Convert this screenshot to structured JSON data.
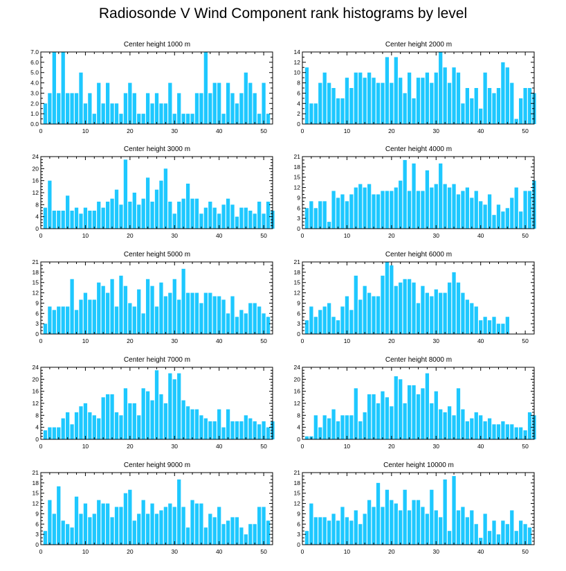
{
  "title": "Radiosonde V Wind Component rank histograms by level",
  "bar_color": "#1ec8ff",
  "chart_data": [
    {
      "type": "bar",
      "title": "Center height 1000 m",
      "xlim": [
        0,
        52
      ],
      "ylim": [
        0,
        7
      ],
      "x_ticks": [
        0,
        10,
        20,
        30,
        40,
        50
      ],
      "y_ticks": [
        0,
        1,
        2,
        3,
        4,
        5,
        6,
        7
      ],
      "y_tick_labels": [
        "0.0",
        "1.0",
        "2.0",
        "3.0",
        "4.0",
        "5.0",
        "6.0",
        "7.0"
      ],
      "values": [
        2,
        3,
        7,
        3,
        7,
        3,
        3,
        3,
        5,
        2,
        3,
        1,
        4,
        2,
        4,
        2,
        2,
        1,
        3,
        4,
        3,
        1,
        1,
        3,
        2,
        3,
        2,
        2,
        4,
        1,
        3,
        1,
        1,
        1,
        3,
        3,
        7,
        3,
        4,
        4,
        1,
        4,
        3,
        2,
        3,
        5,
        4,
        3,
        1,
        4,
        1
      ]
    },
    {
      "type": "bar",
      "title": "Center height 2000 m",
      "xlim": [
        0,
        52
      ],
      "ylim": [
        0,
        14
      ],
      "x_ticks": [
        0,
        10,
        20,
        30,
        40,
        50
      ],
      "y_ticks": [
        0,
        2,
        4,
        6,
        8,
        10,
        12,
        14
      ],
      "y_tick_labels": [
        "0",
        "2",
        "4",
        "6",
        "8",
        "10",
        "12",
        "14"
      ],
      "values": [
        11,
        4,
        4,
        8,
        10,
        8,
        7,
        5,
        5,
        9,
        7,
        10,
        10,
        9,
        10,
        9,
        8,
        8,
        13,
        8,
        13,
        9,
        6,
        10,
        5,
        9,
        9,
        10,
        8,
        10,
        14,
        11,
        8,
        11,
        10,
        4,
        7,
        5,
        7,
        3,
        10,
        7,
        6,
        7,
        12,
        11,
        8,
        1,
        5,
        7,
        7,
        6
      ]
    },
    {
      "type": "bar",
      "title": "Center height 3000 m",
      "xlim": [
        0,
        52
      ],
      "ylim": [
        0,
        24
      ],
      "x_ticks": [
        0,
        10,
        20,
        30,
        40,
        50
      ],
      "y_ticks": [
        0,
        4,
        8,
        12,
        16,
        20,
        24
      ],
      "y_tick_labels": [
        "0",
        "4",
        "8",
        "12",
        "16",
        "20",
        "24"
      ],
      "values": [
        7,
        16,
        6,
        6,
        6,
        11,
        6,
        7,
        5,
        7,
        6,
        6,
        9,
        7,
        9,
        10,
        13,
        8,
        23,
        9,
        12,
        8,
        10,
        17,
        9,
        13,
        16,
        20,
        9,
        5,
        9,
        10,
        15,
        10,
        10,
        5,
        7,
        9,
        7,
        5,
        8,
        10,
        8,
        4,
        7,
        7,
        6,
        5,
        9,
        5,
        9,
        6
      ]
    },
    {
      "type": "bar",
      "title": "Center height 4000 m",
      "xlim": [
        0,
        52
      ],
      "ylim": [
        0,
        21
      ],
      "x_ticks": [
        0,
        10,
        20,
        30,
        40,
        50
      ],
      "y_ticks": [
        0,
        3,
        6,
        9,
        12,
        15,
        18,
        21
      ],
      "y_tick_labels": [
        "0",
        "3",
        "6",
        "9",
        "12",
        "15",
        "18",
        "21"
      ],
      "values": [
        6,
        8,
        6,
        8,
        8,
        2,
        11,
        9,
        10,
        8,
        10,
        12,
        13,
        12,
        13,
        10,
        10,
        11,
        11,
        11,
        12,
        14,
        20,
        11,
        19,
        11,
        11,
        17,
        12,
        13,
        19,
        13,
        12,
        13,
        10,
        11,
        12,
        9,
        11,
        8,
        7,
        10,
        4,
        7,
        5,
        6,
        9,
        12,
        5,
        11,
        11,
        14
      ]
    },
    {
      "type": "bar",
      "title": "Center height 5000 m",
      "xlim": [
        0,
        52
      ],
      "ylim": [
        0,
        21
      ],
      "x_ticks": [
        0,
        10,
        20,
        30,
        40,
        50
      ],
      "y_ticks": [
        0,
        3,
        6,
        9,
        12,
        15,
        18,
        21
      ],
      "y_tick_labels": [
        "0",
        "3",
        "6",
        "9",
        "12",
        "15",
        "18",
        "21"
      ],
      "values": [
        3,
        8,
        7,
        8,
        8,
        8,
        16,
        7,
        10,
        12,
        10,
        10,
        15,
        14,
        12,
        16,
        8,
        17,
        14,
        9,
        8,
        13,
        6,
        16,
        14,
        8,
        15,
        11,
        12,
        16,
        10,
        19,
        12,
        12,
        12,
        9,
        12,
        12,
        11,
        11,
        10,
        6,
        11,
        5,
        7,
        6,
        9,
        9,
        8,
        6,
        5
      ]
    },
    {
      "type": "bar",
      "title": "Center height 6000 m",
      "xlim": [
        0,
        52
      ],
      "ylim": [
        0,
        21
      ],
      "x_ticks": [
        0,
        10,
        20,
        30,
        40,
        50
      ],
      "y_ticks": [
        0,
        3,
        6,
        9,
        12,
        15,
        18,
        21
      ],
      "y_tick_labels": [
        "0",
        "3",
        "6",
        "9",
        "12",
        "15",
        "18",
        "21"
      ],
      "values": [
        4,
        8,
        5,
        7,
        8,
        9,
        5,
        4,
        8,
        11,
        7,
        17,
        10,
        14,
        12,
        11,
        11,
        17,
        21,
        20,
        14,
        15,
        16,
        16,
        15,
        9,
        14,
        12,
        11,
        13,
        12,
        12,
        15,
        18,
        15,
        12,
        10,
        9,
        8,
        4,
        5,
        4,
        5,
        3,
        3,
        5
      ]
    },
    {
      "type": "bar",
      "title": "Center height 7000 m",
      "xlim": [
        0,
        52
      ],
      "ylim": [
        0,
        24
      ],
      "x_ticks": [
        0,
        10,
        20,
        30,
        40,
        50
      ],
      "y_ticks": [
        0,
        4,
        8,
        12,
        16,
        20,
        24
      ],
      "y_tick_labels": [
        "0",
        "4",
        "8",
        "12",
        "16",
        "20",
        "24"
      ],
      "values": [
        3,
        4,
        4,
        4,
        7,
        9,
        5,
        9,
        11,
        12,
        9,
        8,
        7,
        14,
        15,
        15,
        9,
        8,
        17,
        12,
        12,
        8,
        17,
        16,
        13,
        23,
        15,
        12,
        22,
        20,
        22,
        13,
        11,
        10,
        10,
        8,
        7,
        6,
        6,
        10,
        4,
        10,
        6,
        6,
        6,
        8,
        7,
        6,
        5,
        6,
        4,
        6
      ]
    },
    {
      "type": "bar",
      "title": "Center height 8000 m",
      "xlim": [
        0,
        52
      ],
      "ylim": [
        0,
        24
      ],
      "x_ticks": [
        0,
        10,
        20,
        30,
        40,
        50
      ],
      "y_ticks": [
        0,
        4,
        8,
        12,
        16,
        20,
        24
      ],
      "y_tick_labels": [
        "0",
        "4",
        "8",
        "12",
        "16",
        "20",
        "24"
      ],
      "values": [
        1,
        1,
        8,
        4,
        8,
        7,
        10,
        6,
        8,
        8,
        8,
        17,
        6,
        9,
        15,
        15,
        12,
        16,
        14,
        11,
        21,
        20,
        12,
        18,
        18,
        15,
        17,
        22,
        12,
        16,
        10,
        9,
        11,
        8,
        17,
        10,
        6,
        7,
        9,
        8,
        6,
        7,
        5,
        5,
        6,
        5,
        5,
        4,
        4,
        3,
        9,
        8
      ]
    },
    {
      "type": "bar",
      "title": "Center height 9000 m",
      "xlim": [
        0,
        52
      ],
      "ylim": [
        0,
        21
      ],
      "x_ticks": [
        0,
        10,
        20,
        30,
        40,
        50
      ],
      "y_ticks": [
        0,
        3,
        6,
        9,
        12,
        15,
        18,
        21
      ],
      "y_tick_labels": [
        "0",
        "3",
        "6",
        "9",
        "12",
        "15",
        "18",
        "21"
      ],
      "values": [
        4,
        13,
        9,
        17,
        7,
        6,
        5,
        14,
        9,
        12,
        8,
        9,
        13,
        12,
        12,
        8,
        11,
        11,
        15,
        16,
        7,
        9,
        13,
        9,
        12,
        9,
        10,
        11,
        12,
        11,
        19,
        11,
        5,
        13,
        12,
        12,
        5,
        9,
        8,
        11,
        6,
        7,
        8,
        8,
        5,
        3,
        6,
        6,
        11,
        11,
        7
      ]
    },
    {
      "type": "bar",
      "title": "Center height 10000 m",
      "xlim": [
        0,
        52
      ],
      "ylim": [
        0,
        21
      ],
      "x_ticks": [
        0,
        10,
        20,
        30,
        40,
        50
      ],
      "y_ticks": [
        0,
        3,
        6,
        9,
        12,
        15,
        18,
        21
      ],
      "y_tick_labels": [
        "0",
        "3",
        "6",
        "9",
        "12",
        "15",
        "18",
        "21"
      ],
      "values": [
        4,
        12,
        8,
        8,
        8,
        7,
        9,
        7,
        11,
        8,
        7,
        10,
        6,
        9,
        13,
        11,
        18,
        11,
        16,
        13,
        12,
        10,
        16,
        10,
        13,
        13,
        11,
        9,
        16,
        10,
        8,
        19,
        4,
        20,
        10,
        11,
        8,
        10,
        6,
        2,
        9,
        4,
        7,
        3,
        7,
        6,
        10,
        4,
        7,
        6,
        5
      ]
    }
  ]
}
